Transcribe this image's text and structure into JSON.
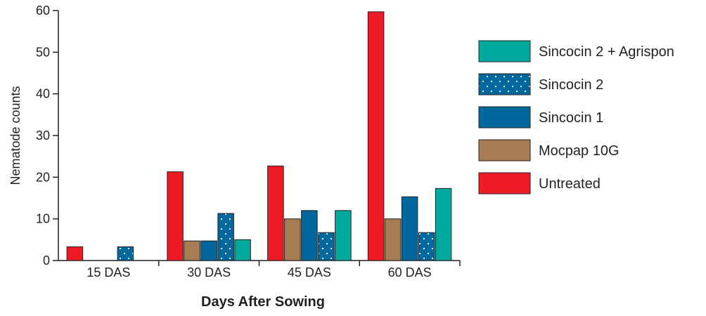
{
  "chart_data": {
    "type": "bar",
    "title": "",
    "xlabel": "Days After Sowing",
    "ylabel": "Nematode counts",
    "ylim": [
      0,
      60
    ],
    "yticks": [
      0,
      10,
      20,
      30,
      40,
      50,
      60
    ],
    "grid": false,
    "legend_position": "right",
    "categories": [
      "15 DAS",
      "30 DAS",
      "45 DAS",
      "60 DAS"
    ],
    "series": [
      {
        "name": "Untreated",
        "values": [
          3.3,
          21.3,
          22.7,
          59.7
        ],
        "color": "#ed1c24",
        "pattern": "solid"
      },
      {
        "name": "Mocpap 10G",
        "values": [
          0,
          4.7,
          10.0,
          10.0
        ],
        "color": "#a67c52",
        "pattern": "solid"
      },
      {
        "name": "Sincocin 1",
        "values": [
          0,
          4.7,
          12.0,
          15.3
        ],
        "color": "#00689d",
        "pattern": "solid"
      },
      {
        "name": "Sincocin 2",
        "values": [
          3.3,
          11.3,
          6.7,
          6.7
        ],
        "color": "#00689d",
        "pattern": "dotted"
      },
      {
        "name": "Sincocin 2 + Agrispon",
        "values": [
          0,
          5.0,
          12.0,
          17.3
        ],
        "color": "#00a99d",
        "pattern": "solid"
      }
    ],
    "legend_order": [
      "Sincocin 2 + Agrispon",
      "Sincocin 2",
      "Sincocin 1",
      "Mocpap 10G",
      "Untreated"
    ]
  }
}
